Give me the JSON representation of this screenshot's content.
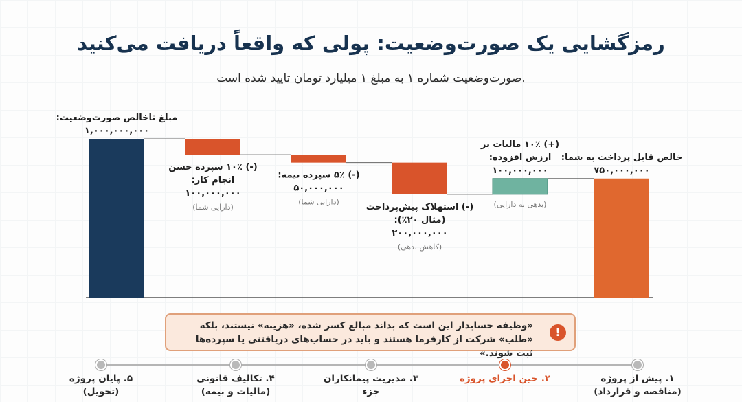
{
  "title": "رمزگشایی یک صورت‌وضعیت: پولی که واقعاً دریافت می‌کنید",
  "subtitle": "صورت‌وضعیت شماره ۱ به مبلغ ۱ میلیارد تومان تایید شده است.",
  "chart_data": {
    "type": "bar",
    "subtype": "waterfall",
    "unit": "تومان",
    "steps": [
      {
        "label_lines": [
          "مبلغ ناخالص صورت‌وضعیت:"
        ],
        "value_text": "۱,۰۰۰,۰۰۰,۰۰۰",
        "note": "",
        "value": 1000000000,
        "kind": "total",
        "color": "#1a3a5c",
        "label_pos": "above"
      },
      {
        "label_lines": [
          "(-) ۱۰٪ سپرده حسن",
          "انجام کار:"
        ],
        "value_text": "۱۰۰,۰۰۰,۰۰۰",
        "note": "(دارایی شما)",
        "value": -100000000,
        "kind": "delta",
        "color": "#d9542b",
        "label_pos": "below"
      },
      {
        "label_lines": [
          "(-) ۵٪ سپرده بیمه:"
        ],
        "value_text": "۵۰,۰۰۰,۰۰۰",
        "note": "(دارایی شما)",
        "value": -50000000,
        "kind": "delta",
        "color": "#d9542b",
        "label_pos": "below"
      },
      {
        "label_lines": [
          "(-) استهلاک پیش‌پرداخت",
          "(مثال ۲۰٪):"
        ],
        "value_text": "۲۰۰,۰۰۰,۰۰۰",
        "note": "(کاهش بدهی)",
        "value": -200000000,
        "kind": "delta",
        "color": "#d9542b",
        "label_pos": "below"
      },
      {
        "label_lines": [
          "(+) ۱۰٪ مالیات بر",
          "ارزش افزوده:"
        ],
        "value_text": "۱۰۰,۰۰۰,۰۰۰",
        "note": "(بدهی به دارایی)",
        "value": 100000000,
        "kind": "delta",
        "color": "#6fb3a0",
        "label_pos": "above"
      },
      {
        "label_lines": [
          "خالص قابل پرداخت به شما:"
        ],
        "value_text": "۷۵۰,۰۰۰,۰۰۰",
        "note": "",
        "value": 750000000,
        "kind": "total",
        "color": "#e0682f",
        "label_pos": "above"
      }
    ]
  },
  "callout": {
    "icon": "exclamation-icon",
    "text": "«وظیفه حسابدار این است که بداند مبالغ کسر شده، «هزینه» نیستند، بلکه «طلب» شرکت از کارفرما هستند و باید در حساب‌های دریافتنی یا سپرده‌ها ثبت شوند.»"
  },
  "timeline": {
    "items": [
      {
        "label": [
          "۱. پیش از پروژه",
          "(مناقصه و قرارداد)"
        ],
        "active": false
      },
      {
        "label": [
          "۲. حین اجرای پروژه"
        ],
        "active": true
      },
      {
        "label": [
          "۳. مدیریت پیمانکاران جزء"
        ],
        "active": false
      },
      {
        "label": [
          "۴. تکالیف قانونی",
          "(مالیات و بیمه)"
        ],
        "active": false
      },
      {
        "label": [
          "۵. پایان پروژه",
          "(تحویل)"
        ],
        "active": false
      }
    ],
    "active_color": "#d9542b"
  }
}
